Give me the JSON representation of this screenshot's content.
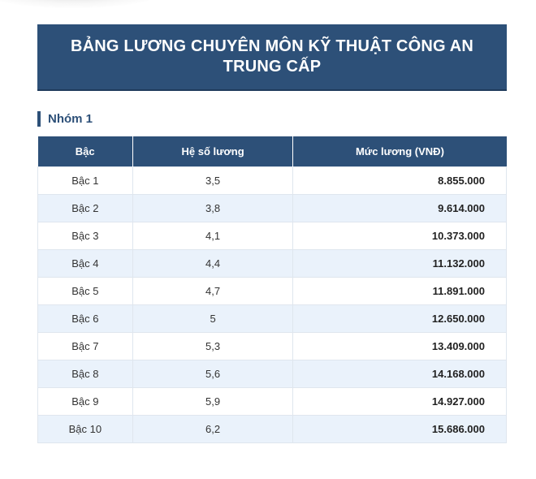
{
  "title": "BẢNG LƯƠNG CHUYÊN MÔN KỸ THUẬT CÔNG AN TRUNG CẤP",
  "group_label": "Nhóm 1",
  "table": {
    "headers": [
      "Bậc",
      "Hệ số lương",
      "Mức lương (VNĐ)"
    ],
    "rows": [
      {
        "level": "Bậc 1",
        "coefficient": "3,5",
        "salary": "8.855.000"
      },
      {
        "level": "Bậc 2",
        "coefficient": "3,8",
        "salary": "9.614.000"
      },
      {
        "level": "Bậc 3",
        "coefficient": "4,1",
        "salary": "10.373.000"
      },
      {
        "level": "Bậc 4",
        "coefficient": "4,4",
        "salary": "11.132.000"
      },
      {
        "level": "Bậc 5",
        "coefficient": "4,7",
        "salary": "11.891.000"
      },
      {
        "level": "Bậc 6",
        "coefficient": "5",
        "salary": "12.650.000"
      },
      {
        "level": "Bậc 7",
        "coefficient": "5,3",
        "salary": "13.409.000"
      },
      {
        "level": "Bậc 8",
        "coefficient": "5,6",
        "salary": "14.168.000"
      },
      {
        "level": "Bậc 9",
        "coefficient": "5,9",
        "salary": "14.927.000"
      },
      {
        "level": "Bậc 10",
        "coefficient": "6,2",
        "salary": "15.686.000"
      }
    ]
  },
  "colors": {
    "header_bg": "#2d5078",
    "row_alt_bg": "#eaf2fb",
    "accent": "#2d5078"
  }
}
